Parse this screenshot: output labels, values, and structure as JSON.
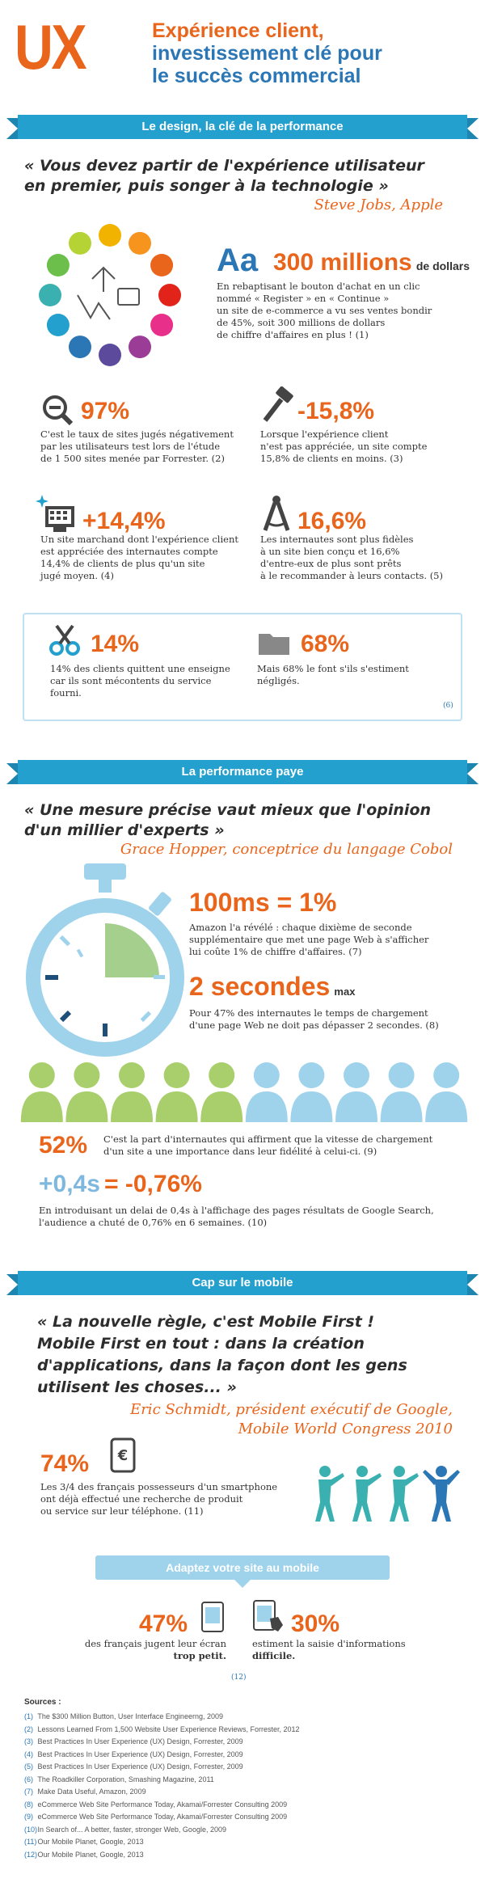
{
  "header": {
    "logo": "UX",
    "title_line1": "Expérience client,",
    "title_line2": "investissement clé pour",
    "title_line3": "le succès commercial"
  },
  "sec1": {
    "banner": "Le design, la clé de la performance",
    "quote_line1": "« Vous devez partir de l'expérience utilisateur",
    "quote_line2": "en premier, puis songer à la technologie »",
    "author": "Steve Jobs, Apple",
    "aa": "Aa",
    "big_stat": "300 millions",
    "big_stat_unit": "de dollars",
    "big_desc": [
      "En rebaptisant le bouton d'achat en un clic",
      "nommé « Register » en « Continue »",
      "un site de e-commerce a vu ses ventes bondir",
      "de 45%, soit 300 millions de dollars",
      "de chiffre d'affaires en plus ! (1)"
    ],
    "stats": [
      {
        "value": "97%",
        "icon": "magnifier-minus-icon",
        "lines": [
          "C'est le taux de sites jugés négativement",
          "par les utilisateurs test lors de l'étude",
          "de 1 500 sites menée par Forrester. (2)"
        ]
      },
      {
        "value": "-15,8%",
        "icon": "hammer-icon",
        "lines": [
          "Lorsque l'expérience client",
          "n'est pas appréciée, un site compte",
          "15,8% de clients en moins. (3)"
        ]
      },
      {
        "value": "+14,4%",
        "icon": "computer-sparkle-icon",
        "lines": [
          "Un site marchand dont l'expérience client",
          "est appréciée des internautes compte",
          "14,4% de clients de plus qu'un site",
          "jugé moyen. (4)"
        ]
      },
      {
        "value": "16,6%",
        "icon": "compass-icon",
        "lines": [
          "Les internautes sont plus fidèles",
          "à un site bien conçu et 16,6%",
          "d'entre-eux de plus sont prêts",
          "à le recommander à leurs contacts. (5)"
        ]
      }
    ],
    "box": {
      "left_value": "14%",
      "left_lines": [
        "14% des clients quittent une enseigne",
        "car ils sont mécontents du service",
        "fourni."
      ],
      "right_value": "68%",
      "right_lines": [
        "Mais 68% le font s'ils s'estiment",
        "négligés."
      ],
      "ref": "(6)"
    }
  },
  "sec2": {
    "banner": "La performance paye",
    "quote_line1": "« Une mesure précise vaut mieux que l'opinion",
    "quote_line2": "d'un millier d'experts »",
    "author": "Grace Hopper, conceptrice du langage Cobol",
    "stat1": "100ms = 1%",
    "stat1_lines": [
      "Amazon l'a révélé : chaque dixième de seconde",
      "supplémentaire que met une page Web à s'afficher",
      "lui coûte 1% de chiffre d'affaires. (7)"
    ],
    "stat2": "2 secondes",
    "stat2_unit": "max",
    "stat2_lines": [
      "Pour 47% des internautes le temps de chargement",
      "d'une page Web ne doit pas dépasser 2 secondes. (8)"
    ],
    "people_green": 5,
    "people_total": 10,
    "stat3": "52%",
    "stat3_lines": [
      "C'est la part d'internautes qui affirment que la vitesse de chargement",
      "d'un site a une importance dans leur fidélité à celui-ci. (9)"
    ],
    "stat4a": "+0,4s",
    "stat4b": "= -0,76%",
    "stat4_lines": [
      "En introduisant un delai de 0,4s à l'affichage des pages résultats de Google Search,",
      "l'audience a chuté de 0,76% en 6 semaines. (10)"
    ]
  },
  "sec3": {
    "banner": "Cap sur le mobile",
    "quote_lines": [
      "« La nouvelle règle, c'est Mobile First !",
      "Mobile First en tout : dans la création",
      "d'applications, dans la façon dont les gens",
      "utilisent les choses... »"
    ],
    "author_line1": "Eric Schmidt, président exécutif de Google,",
    "author_line2": "Mobile World Congress 2010",
    "stat": "74%",
    "stat_lines": [
      "Les 3/4 des français possesseurs d'un smartphone",
      "ont déjà effectué une recherche de produit",
      "ou service sur leur téléphone. (11)"
    ],
    "banner2": "Adaptez votre site au mobile",
    "left_value": "47%",
    "left_lines": [
      "des français jugent leur écran",
      "trop petit."
    ],
    "right_value": "30%",
    "right_lines": [
      "estiment la saisie d'informations",
      "difficile."
    ],
    "ref": "(12)"
  },
  "sources": {
    "title": "Sources :",
    "items": [
      {
        "n": "(1)",
        "t": "The $300 Million Button, User Interface Engineerng, 2009"
      },
      {
        "n": "(2)",
        "t": "Lessons Learned From 1,500 Website User Experience Reviews, Forrester, 2012"
      },
      {
        "n": "(3)",
        "t": "Best Practices In User Experience (UX) Design, Forrester, 2009"
      },
      {
        "n": "(4)",
        "t": "Best Practices In User Experience (UX) Design, Forrester, 2009"
      },
      {
        "n": "(5)",
        "t": "Best Practices In User Experience (UX) Design, Forrester, 2009"
      },
      {
        "n": "(6)",
        "t": "The Roadkiller Corporation, Smashing Magazine, 2011"
      },
      {
        "n": "(7)",
        "t": "Make Data Useful, Amazon, 2009"
      },
      {
        "n": "(8)",
        "t": "eCommerce Web Site Performance Today, Akamai/Forrester Consulting 2009"
      },
      {
        "n": "(9)",
        "t": "eCommerce Web Site Performance Today, Akamai/Forrester Consulting 2009"
      },
      {
        "n": "(10)",
        "t": "In Search of... A better, faster, stronger Web, Google, 2009"
      },
      {
        "n": "(11)",
        "t": "Our Mobile Planet, Google, 2013"
      },
      {
        "n": "(12)",
        "t": "Our Mobile Planet, Google, 2013"
      }
    ]
  },
  "colors": {
    "orange": "#e9651c",
    "blue": "#24a0cf",
    "dark_blue": "#2b77b5",
    "light_blue": "#7fb8df",
    "green": "#a8cf6c"
  }
}
